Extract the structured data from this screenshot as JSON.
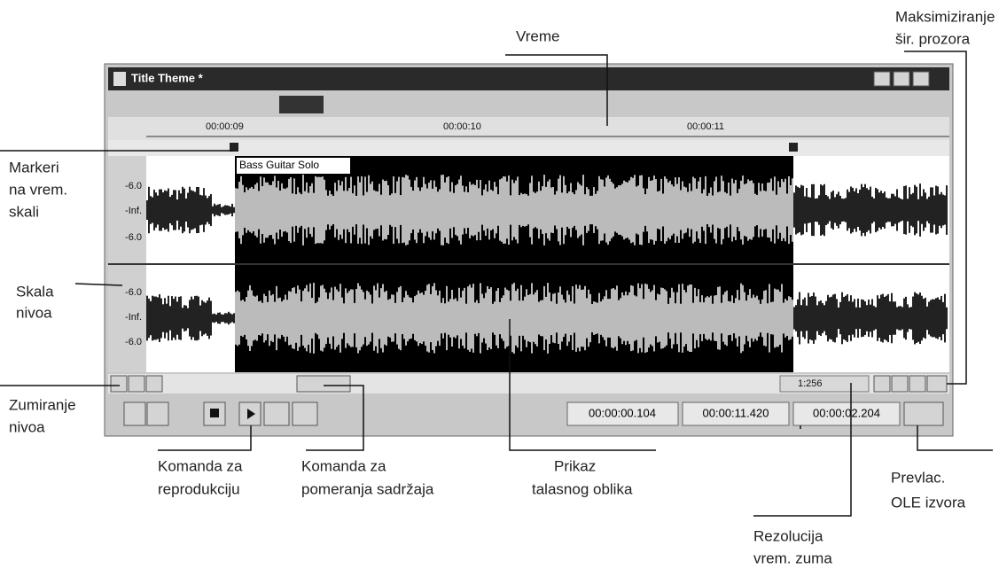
{
  "window": {
    "title": "Title Theme *",
    "ruler_labels": [
      "00:00:09",
      "00:00:10",
      "00:00:11"
    ],
    "region_label": "Bass Guitar Solo",
    "level_labels": [
      [
        "-6.0",
        "-Inf.",
        "-6.0"
      ],
      [
        "-6.0",
        "-Inf.",
        "-6.0"
      ]
    ],
    "zoom": "1:256",
    "time_displays": [
      "00:00:00.104",
      "00:00:11.420",
      "00:00:02.204"
    ]
  },
  "callouts": {
    "vreme": [
      "Vreme"
    ],
    "maksimiziranje": [
      "Maksimiziranje",
      "šir. prozora"
    ],
    "markeri": [
      "Markeri",
      "na vrem.",
      "skali"
    ],
    "skala": [
      "Skala",
      "nivoa"
    ],
    "zumiranje": [
      "Zumiranje",
      "nivoa"
    ],
    "reprodukcija": [
      "Komanda za",
      "reprodukciju"
    ],
    "pomeranje": [
      "Komanda za",
      "pomeranja sadržaja"
    ],
    "prikaz": [
      "Prikaz",
      "talasnog oblika"
    ],
    "prevlac": [
      "Prevlac.",
      "OLE izvora"
    ],
    "rezolucija": [
      "Rezolucija",
      "vrem. zuma"
    ]
  }
}
